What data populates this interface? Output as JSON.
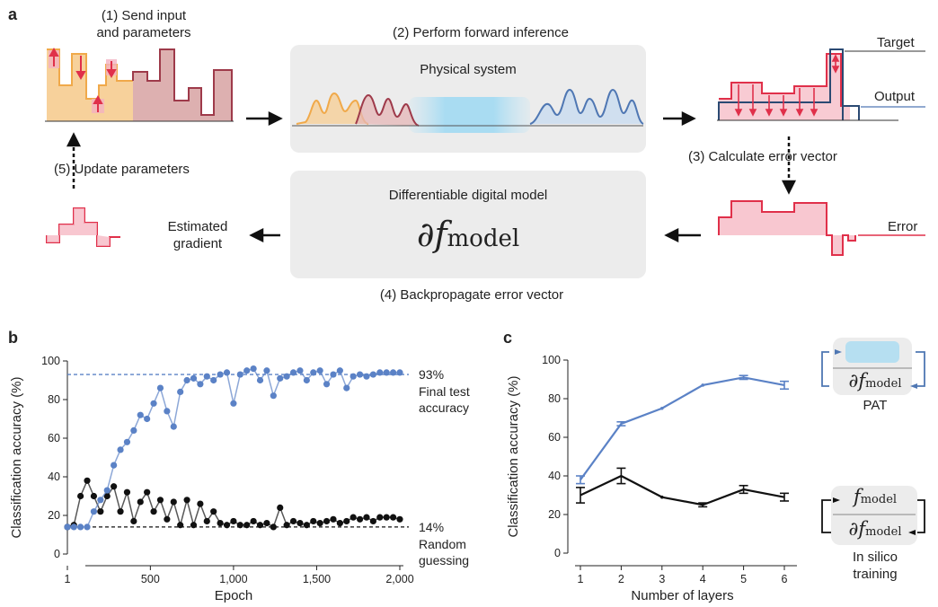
{
  "panel_a": {
    "letter": "a",
    "step1_line1": "(1) Send input",
    "step1_line2": "and parameters",
    "step2": "(2) Perform forward inference",
    "physical_system": "Physical system",
    "target": "Target",
    "output": "Output",
    "step3": "(3) Calculate error vector",
    "step5": "(5) Update parameters",
    "digital_model": "Differentiable digital model",
    "digital_model_math": "∂f",
    "digital_model_sub": "model",
    "est_line1": "Estimated",
    "est_line2": "gradient",
    "error": "Error",
    "step4": "(4) Backpropagate error vector"
  },
  "panel_b": {
    "letter": "b"
  },
  "panel_c": {
    "letter": "c",
    "pat_label": "PAT",
    "pat_math": "∂f",
    "pat_sub": "model",
    "insilico_f": "f",
    "insilico_f_sub": "model",
    "insilico_df": "∂f",
    "insilico_df_sub": "model",
    "insilico_line1": "In silico",
    "insilico_line2": "training"
  },
  "chart_data": [
    {
      "type": "scatter",
      "xlabel": "Epoch",
      "ylabel": "Classification accuracy (%)",
      "xlim": [
        1,
        2000
      ],
      "ylim": [
        0,
        100
      ],
      "xticks": [
        1,
        500,
        1000,
        1500,
        2000
      ],
      "xtick_labels": [
        "1",
        "500",
        "1,000",
        "1,500",
        "2,000"
      ],
      "yticks": [
        0,
        20,
        40,
        60,
        80,
        100
      ],
      "ytick_labels": [
        "0",
        "20",
        "40",
        "60",
        "80",
        "100"
      ],
      "colors": {
        "blue": "#5b82c6",
        "black": "#111111"
      },
      "series": [
        {
          "color": "blue",
          "x": [
            1,
            40,
            80,
            120,
            160,
            200,
            240,
            280,
            320,
            360,
            400,
            440,
            480,
            520,
            560,
            600,
            640,
            680,
            720,
            760,
            800,
            840,
            880,
            920,
            960,
            1000,
            1040,
            1080,
            1120,
            1160,
            1200,
            1240,
            1280,
            1320,
            1360,
            1400,
            1440,
            1480,
            1520,
            1560,
            1600,
            1640,
            1680,
            1720,
            1760,
            1800,
            1840,
            1880,
            1920,
            1960,
            2000
          ],
          "y": [
            14,
            14,
            14,
            14,
            22,
            28,
            33,
            46,
            54,
            58,
            64,
            72,
            70,
            78,
            86,
            74,
            66,
            84,
            90,
            91,
            88,
            92,
            90,
            93,
            94,
            78,
            93,
            95,
            96,
            90,
            95,
            82,
            91,
            92,
            94,
            95,
            90,
            94,
            95,
            88,
            93,
            95,
            86,
            92,
            93,
            92,
            93,
            94,
            94,
            94,
            94
          ]
        },
        {
          "color": "black",
          "x": [
            1,
            40,
            80,
            120,
            160,
            200,
            240,
            280,
            320,
            360,
            400,
            440,
            480,
            520,
            560,
            600,
            640,
            680,
            720,
            760,
            800,
            840,
            880,
            920,
            960,
            1000,
            1040,
            1080,
            1120,
            1160,
            1200,
            1240,
            1280,
            1320,
            1360,
            1400,
            1440,
            1480,
            1520,
            1560,
            1600,
            1640,
            1680,
            1720,
            1760,
            1800,
            1840,
            1880,
            1920,
            1960,
            2000
          ],
          "y": [
            14,
            15,
            30,
            38,
            30,
            22,
            30,
            35,
            22,
            32,
            17,
            27,
            32,
            22,
            28,
            18,
            27,
            15,
            28,
            15,
            26,
            17,
            22,
            16,
            15,
            17,
            15,
            15,
            17,
            15,
            16,
            14,
            24,
            15,
            17,
            16,
            15,
            17,
            16,
            17,
            18,
            16,
            17,
            19,
            18,
            19,
            17,
            19,
            19,
            19,
            18
          ]
        }
      ],
      "reference_lines": [
        {
          "y": 93,
          "color": "blue",
          "label": "93%",
          "note_line1": "Final test",
          "note_line2": "accuracy"
        },
        {
          "y": 14,
          "color": "black",
          "label": "14%",
          "note_line1": "Random",
          "note_line2": "guessing"
        }
      ]
    },
    {
      "type": "line",
      "xlabel": "Number of layers",
      "ylabel": "Classification accuracy (%)",
      "xlim": [
        1,
        6
      ],
      "ylim": [
        0,
        100
      ],
      "x": [
        1,
        2,
        3,
        4,
        5,
        6
      ],
      "xtick_labels": [
        "1",
        "2",
        "3",
        "4",
        "5",
        "6"
      ],
      "yticks": [
        0,
        20,
        40,
        60,
        80,
        100
      ],
      "ytick_labels": [
        "0",
        "20",
        "40",
        "60",
        "80",
        "100"
      ],
      "series": [
        {
          "color": "#5b82c6",
          "values": [
            38,
            67,
            75,
            87,
            91,
            87
          ],
          "errors": [
            2,
            1,
            0,
            0,
            1,
            2
          ]
        },
        {
          "color": "#111111",
          "values": [
            30,
            40,
            29,
            25,
            33,
            29
          ],
          "errors": [
            4,
            4,
            0,
            1,
            2,
            2
          ]
        }
      ]
    }
  ]
}
